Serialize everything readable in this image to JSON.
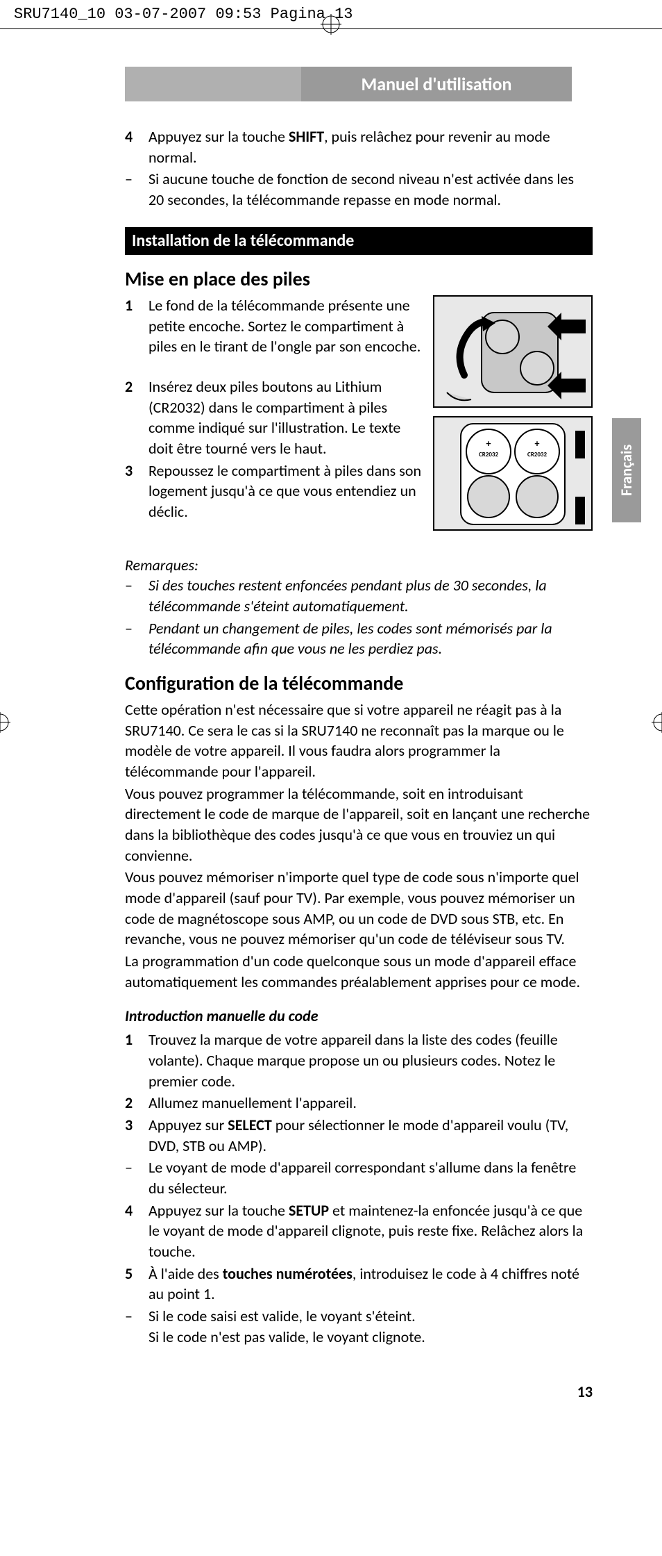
{
  "print_header": "SRU7140_10  03-07-2007  09:53  Pagina 13",
  "header_bar": "Manuel d'utilisation",
  "lang_tab": "Français",
  "page_number": "13",
  "colors": {
    "gray_bar": "#9a9a9a",
    "light_gray": "#b0b0b0",
    "black": "#000000",
    "white": "#ffffff",
    "text": "#000000"
  },
  "top_list": [
    {
      "marker": "4",
      "bold": true,
      "html": "Appuyez sur la touche <b>SHIFT</b>, puis relâchez pour revenir au mode normal."
    },
    {
      "marker": "–",
      "bold": false,
      "html": "Si aucune touche de fonction de second niveau n'est activée dans les 20 secondes, la télécommande repasse en mode normal."
    }
  ],
  "black_bar": "Installation de la télécommande",
  "mise_title": "Mise en place des piles",
  "mise_list": [
    {
      "marker": "1",
      "bold": true,
      "html": "Le fond de la télécommande présente une petite encoche. Sortez le compartiment à piles en le tirant de l'ongle par son encoche."
    },
    {
      "marker": "2",
      "bold": true,
      "html": "Insérez deux piles boutons au Lithium (CR2032) dans le compartiment à piles comme indiqué sur l'illustration. Le texte doit être tourné vers le haut."
    },
    {
      "marker": "3",
      "bold": true,
      "html": "Repoussez le compartiment à piles dans son logement jusqu'à ce que vous entendiez un déclic."
    }
  ],
  "illustration": {
    "battery_label": "CR2032",
    "label_fontsize": 9,
    "fill": "#d0d0d0",
    "stroke": "#000000",
    "bg": "#e8e8e8"
  },
  "remarks_title": "Remarques:",
  "remarks": [
    {
      "marker": "–",
      "html": "Si des touches restent enfoncées pendant plus de 30 secondes, la télécommande s'éteint automatiquement."
    },
    {
      "marker": "–",
      "html": "Pendant un changement de piles, les codes sont mémorisés par la télécommande afin que vous ne les perdiez pas."
    }
  ],
  "config_title": "Configuration de la télécommande",
  "config_paras": [
    "Cette opération n'est nécessaire que si votre appareil ne réagit pas à la SRU7140. Ce sera le cas si la SRU7140 ne reconnaît pas la marque ou le modèle de votre appareil. Il vous faudra alors programmer la télécommande pour l'appareil.",
    "Vous pouvez programmer la télécommande, soit en introduisant directement le code de marque de l'appareil, soit en lançant une recherche dans la bibliothèque des codes jusqu'à ce que vous en trouviez un qui convienne.",
    "Vous pouvez mémoriser n'importe quel type de code sous n'importe quel mode d'appareil (sauf pour TV). Par exemple, vous pouvez mémoriser un code de magnétoscope sous AMP, ou un code de DVD sous STB, etc. En revanche, vous ne pouvez mémoriser qu'un code de téléviseur sous TV.",
    "La programmation d'un code quelconque sous un mode d'appareil efface automatiquement les commandes préalablement apprises pour ce mode."
  ],
  "intro_subheading": "Introduction manuelle du code",
  "intro_list": [
    {
      "marker": "1",
      "bold": true,
      "html": "Trouvez la marque de votre appareil dans la liste des codes (feuille volante). Chaque marque propose un ou plusieurs codes. Notez le premier code."
    },
    {
      "marker": "2",
      "bold": true,
      "html": "Allumez manuellement l'appareil."
    },
    {
      "marker": "3",
      "bold": true,
      "html": "Appuyez sur <b>SELECT</b> pour sélectionner le mode d'appareil voulu (TV, DVD, STB ou AMP)."
    },
    {
      "marker": "–",
      "bold": false,
      "html": "Le voyant de mode d'appareil correspondant s'allume dans la fenêtre du sélecteur."
    },
    {
      "marker": "4",
      "bold": true,
      "html": "Appuyez sur la touche <b>SETUP</b> et maintenez-la enfoncée jusqu'à ce que le voyant de mode d'appareil clignote, puis reste fixe. Relâchez alors la touche."
    },
    {
      "marker": "5",
      "bold": true,
      "html": "À l'aide des <b>touches numérotées</b>, introduisez le code à 4 chiffres noté au point 1."
    },
    {
      "marker": "–",
      "bold": false,
      "html": "Si le code saisi est valide, le voyant s'éteint.<br>Si le code n'est pas valide, le voyant clignote."
    }
  ]
}
